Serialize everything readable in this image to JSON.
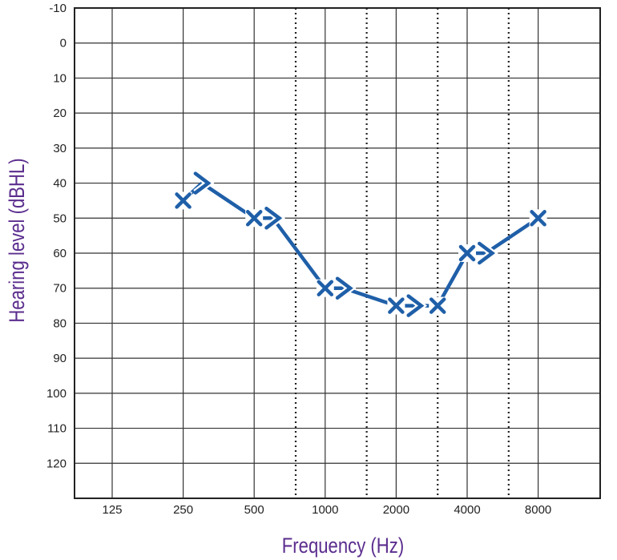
{
  "chart_data": {
    "type": "line",
    "title": "",
    "xlabel": "Frequency (Hz)",
    "ylabel": "Hearing level (dBHL)",
    "x_tick_labels": [
      "125",
      "250",
      "500",
      "1000",
      "2000",
      "4000",
      "8000"
    ],
    "y_tick_labels": [
      "-10",
      "0",
      "10",
      "20",
      "30",
      "40",
      "50",
      "60",
      "70",
      "80",
      "90",
      "100",
      "110",
      "120"
    ],
    "ylim": [
      -10,
      130
    ],
    "y_inverted": true,
    "x_scale": "log2 (octave)",
    "grid": true,
    "interoctave_lines_dotted": [
      750,
      1500,
      3000,
      6000
    ],
    "legend": "none",
    "series": [
      {
        "symbol": "X",
        "color": "#1f5fa8",
        "x": [
          250,
          500,
          1000,
          2000,
          3000,
          4000,
          8000
        ],
        "y": [
          45,
          50,
          70,
          75,
          75,
          60,
          50
        ]
      },
      {
        "symbol": ">",
        "color": "#1f5fa8",
        "x": [
          300,
          600,
          1200,
          2400,
          4800
        ],
        "y": [
          40,
          50,
          70,
          75,
          60
        ]
      }
    ],
    "connecting_line": {
      "color": "#1f5fa8",
      "x": [
        250,
        300,
        500,
        600,
        1000,
        1200,
        2000,
        2400,
        3000,
        4000,
        4800,
        8000
      ],
      "y": [
        45,
        40,
        50,
        50,
        70,
        70,
        75,
        75,
        75,
        60,
        60,
        50
      ]
    },
    "colors": {
      "axis_title": "#5b2d8e",
      "series": "#1f5fa8"
    }
  }
}
